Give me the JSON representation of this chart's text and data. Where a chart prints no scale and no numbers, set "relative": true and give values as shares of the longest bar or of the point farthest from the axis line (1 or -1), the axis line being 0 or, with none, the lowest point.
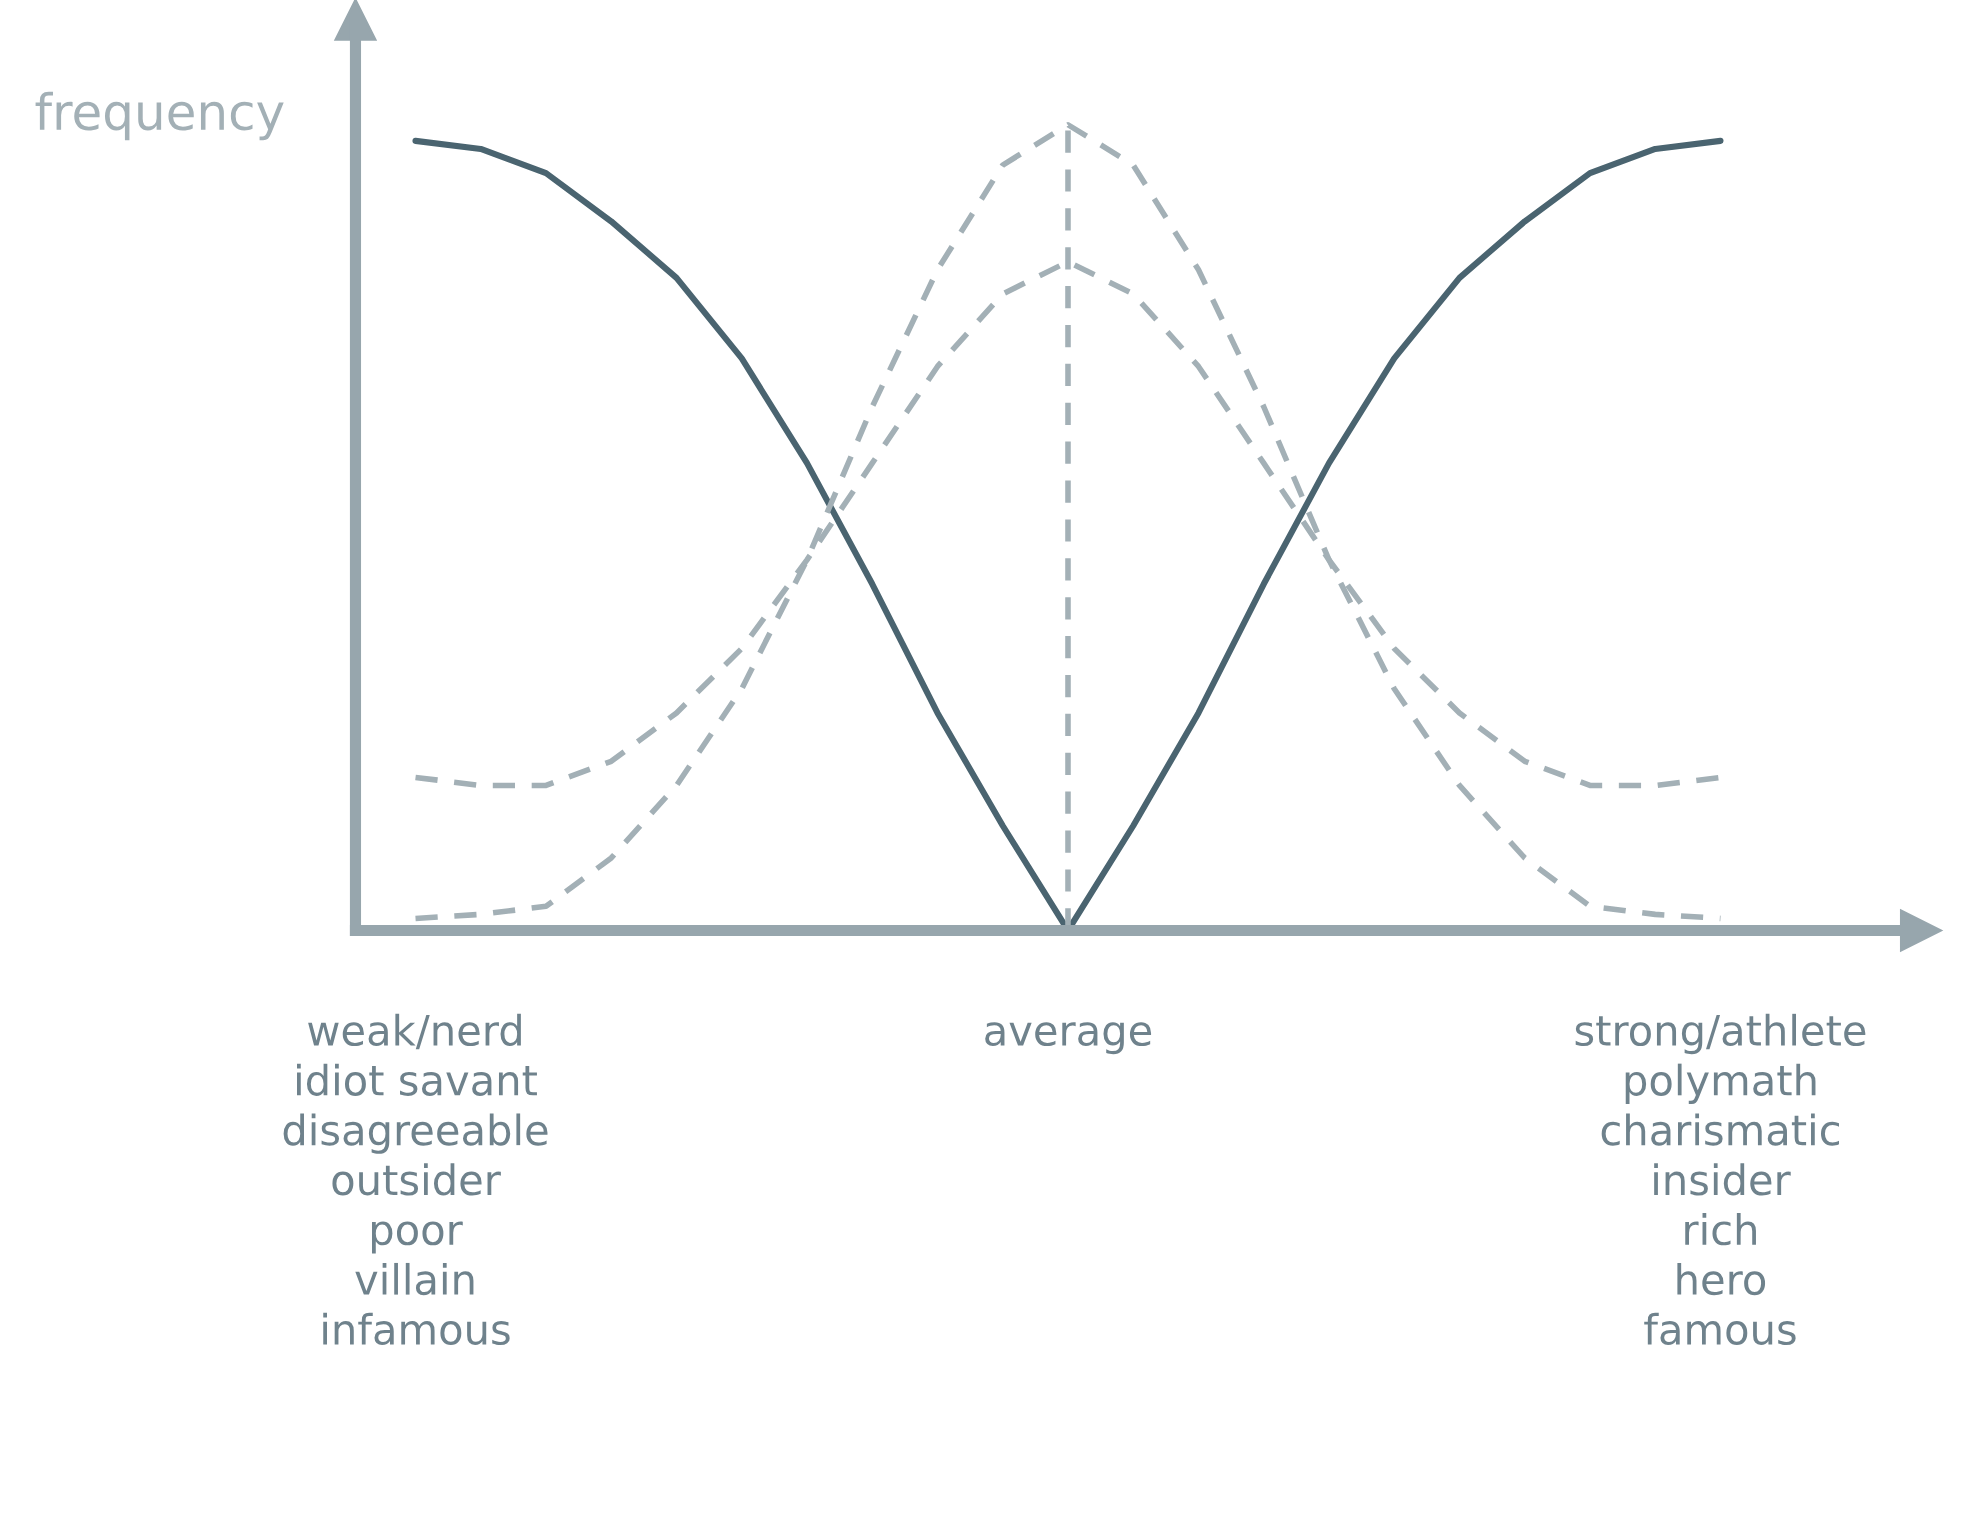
{
  "chart_data": {
    "type": "line",
    "relative": true,
    "ylabel": "frequency",
    "tick_labels": "x",
    "grid": false,
    "legend": false,
    "marker": "none",
    "categories": [
      "weak/nerd\nidiot savant\ndisagreeable\noutsider\npoor\nvillain\ninfamous",
      null,
      null,
      null,
      null,
      null,
      null,
      null,
      null,
      null,
      "average",
      null,
      null,
      null,
      null,
      null,
      null,
      null,
      null,
      null,
      "strong/athlete\npolymath\ncharismatic\ninsider\nrich\nhero\nfamous"
    ],
    "series": [
      {
        "color": "#4a6470",
        "line_style": "solid",
        "values": [
          0.98,
          0.97,
          0.94,
          0.88,
          0.81,
          0.71,
          0.58,
          0.43,
          0.27,
          0.13,
          0.0,
          0.13,
          0.27,
          0.43,
          0.58,
          0.71,
          0.81,
          0.88,
          0.94,
          0.97,
          0.98
        ]
      },
      {
        "color": "#a3b0b6",
        "line_style": "dashed",
        "values": [
          0.015,
          0.02,
          0.03,
          0.09,
          0.18,
          0.3,
          0.46,
          0.65,
          0.82,
          0.95,
          1.0,
          0.95,
          0.82,
          0.65,
          0.46,
          0.3,
          0.18,
          0.09,
          0.03,
          0.02,
          0.015
        ]
      },
      {
        "color": "#a3b0b6",
        "line_style": "dashed",
        "values": [
          0.19,
          0.18,
          0.18,
          0.21,
          0.27,
          0.35,
          0.46,
          0.58,
          0.7,
          0.79,
          0.83,
          0.79,
          0.7,
          0.58,
          0.46,
          0.35,
          0.27,
          0.21,
          0.18,
          0.18,
          0.19
        ]
      }
    ],
    "ref_lines": [
      {
        "axis": "x",
        "value": "average",
        "label": null,
        "color": "#a3b0b6",
        "line_style": "dashed"
      }
    ]
  }
}
